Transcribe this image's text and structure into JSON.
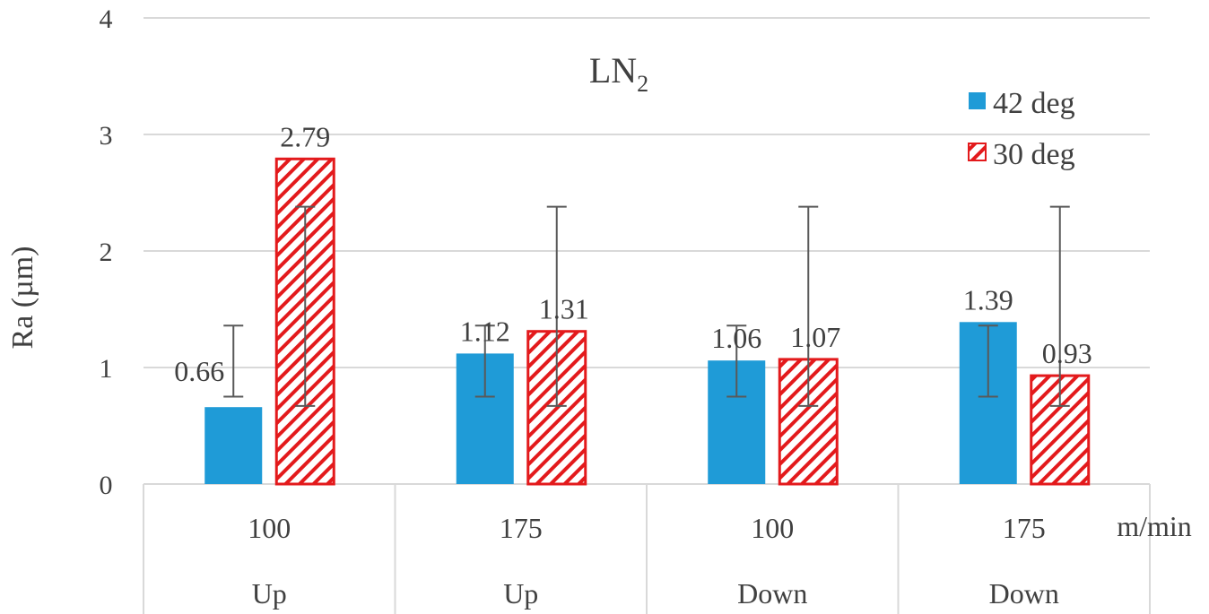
{
  "chart_data": {
    "type": "bar",
    "title": "LN",
    "title_subscript": "2",
    "ylabel": "Ra (µm)",
    "xunit": "m/min",
    "ylim": [
      0,
      4
    ],
    "yticks": [
      0,
      1,
      2,
      3,
      4
    ],
    "yticks_labels": [
      "0",
      "1",
      "2",
      "3",
      "4"
    ],
    "grid": true,
    "legend_position": "top-right",
    "categories": [
      {
        "speed": "100",
        "mode": "Up"
      },
      {
        "speed": "175",
        "mode": "Up"
      },
      {
        "speed": "100",
        "mode": "Down"
      },
      {
        "speed": "175",
        "mode": "Down"
      }
    ],
    "series": [
      {
        "name": "42 deg",
        "color": "#1f9bd7",
        "pattern": "solid",
        "values": [
          0.66,
          1.12,
          1.06,
          1.39
        ],
        "value_labels": [
          "0.66",
          "1.12",
          "1.06",
          "1.39"
        ],
        "error_low": [
          0.75,
          0.75,
          0.75,
          0.75
        ],
        "error_high": [
          1.36,
          1.36,
          1.36,
          1.36
        ]
      },
      {
        "name": "30 deg",
        "color": "#e31a1c",
        "pattern": "diagonal-hatch",
        "values": [
          2.79,
          1.31,
          1.07,
          0.93
        ],
        "value_labels": [
          "2.79",
          "1.31",
          "1.07",
          "0.93"
        ],
        "error_low": [
          0.67,
          0.67,
          0.67,
          0.67
        ],
        "error_high": [
          2.38,
          2.38,
          2.38,
          2.38
        ]
      }
    ]
  }
}
